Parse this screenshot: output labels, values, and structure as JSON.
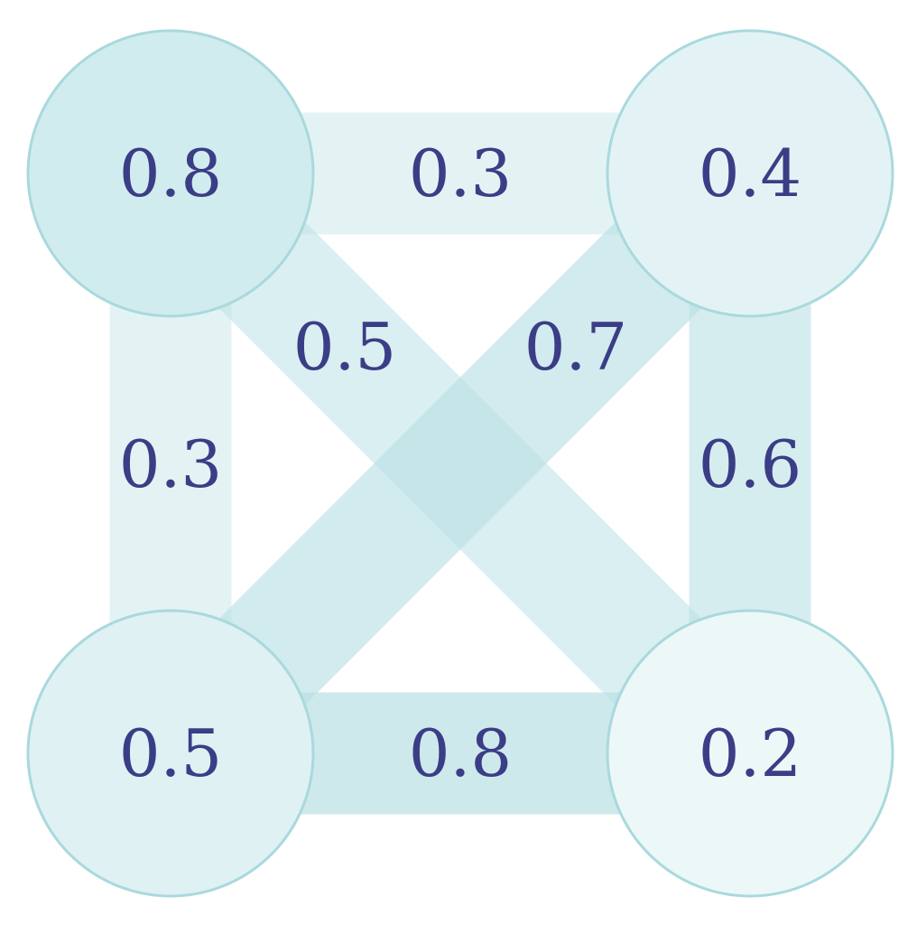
{
  "colors": {
    "edge": "#b9e0e4",
    "node_stroke": "#a9d9dd",
    "node_fill_base": "#c8e8eb",
    "text": "#3b3d86",
    "background": "#ffffff"
  },
  "graph": {
    "nodes": [
      {
        "id": "top-left",
        "value": 0.8,
        "label": "0.8"
      },
      {
        "id": "top-right",
        "value": 0.4,
        "label": "0.4"
      },
      {
        "id": "bottom-left",
        "value": 0.5,
        "label": "0.5"
      },
      {
        "id": "bottom-right",
        "value": 0.2,
        "label": "0.2"
      }
    ],
    "edges": [
      {
        "id": "top",
        "from": "top-left",
        "to": "top-right",
        "weight": 0.3,
        "label": "0.3"
      },
      {
        "id": "left",
        "from": "top-left",
        "to": "bottom-left",
        "weight": 0.3,
        "label": "0.3"
      },
      {
        "id": "diag-down",
        "from": "top-left",
        "to": "bottom-right",
        "weight": 0.5,
        "label": "0.5"
      },
      {
        "id": "diag-up",
        "from": "bottom-left",
        "to": "top-right",
        "weight": 0.7,
        "label": "0.7"
      },
      {
        "id": "right",
        "from": "top-right",
        "to": "bottom-right",
        "weight": 0.6,
        "label": "0.6"
      },
      {
        "id": "bottom",
        "from": "bottom-left",
        "to": "bottom-right",
        "weight": 0.8,
        "label": "0.8"
      }
    ]
  }
}
